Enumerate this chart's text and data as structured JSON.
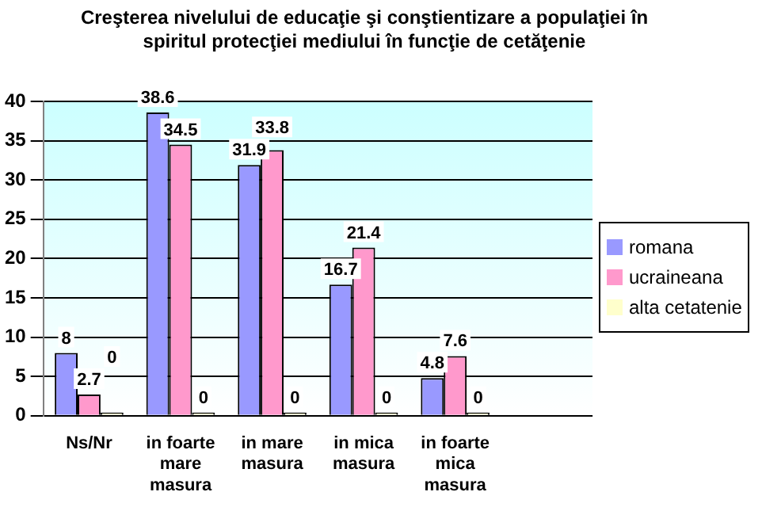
{
  "chart_data": {
    "type": "bar",
    "title": "Creşterea nivelului de educaţie şi conştientizare a populaţiei în spiritul protecţiei mediului în funcţie de cetăţenie",
    "categories": [
      "Ns/Nr",
      "in foarte mare masura",
      "in mare masura",
      "in mica masura",
      "in foarte mica masura",
      null
    ],
    "series": [
      {
        "name": "romana",
        "color": "#9999ff",
        "values": [
          8,
          38.6,
          31.9,
          16.7,
          4.8,
          null
        ]
      },
      {
        "name": "ucraineana",
        "color": "#ff99cc",
        "values": [
          2.7,
          34.5,
          33.8,
          21.4,
          7.6,
          null
        ]
      },
      {
        "name": "alta cetatenie",
        "color": "#ffffcc",
        "values": [
          0,
          0,
          0,
          0,
          0,
          null
        ]
      }
    ],
    "ylim": [
      0,
      40
    ],
    "yticks": [
      0,
      5,
      10,
      15,
      20,
      25,
      30,
      35,
      40
    ],
    "grid": "y",
    "legend": "right",
    "data_labels": true
  }
}
